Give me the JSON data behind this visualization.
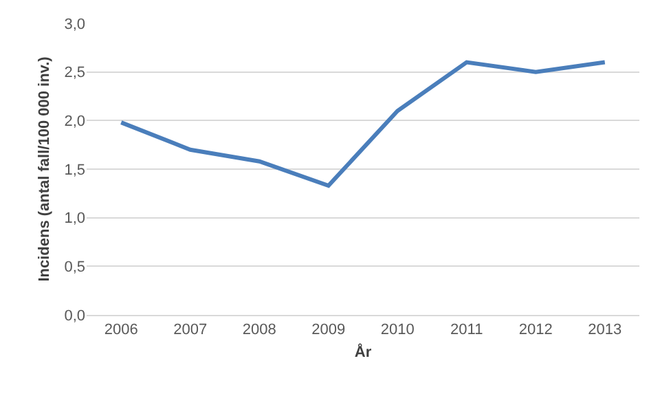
{
  "chart_data": {
    "type": "line",
    "xlabel": "År",
    "ylabel": "Incidens (antal fall/100 000 inv.)",
    "categories": [
      "2006",
      "2007",
      "2008",
      "2009",
      "2010",
      "2011",
      "2012",
      "2013"
    ],
    "series": [
      {
        "color": "#4a7ebb",
        "values": [
          1.98,
          1.7,
          1.58,
          1.33,
          2.1,
          2.6,
          2.5,
          2.6
        ]
      }
    ],
    "ylim": [
      0,
      3
    ],
    "yticks": [
      {
        "value": 0,
        "label": "0,0"
      },
      {
        "value": 0.5,
        "label": "0,5"
      },
      {
        "value": 1,
        "label": "1,0"
      },
      {
        "value": 1.5,
        "label": "1,5"
      },
      {
        "value": 2,
        "label": "2,0"
      },
      {
        "value": 2.5,
        "label": "2,5"
      },
      {
        "value": 3,
        "label": "3,0"
      }
    ],
    "grid": "y",
    "marker": "none",
    "line_style": "solid"
  }
}
